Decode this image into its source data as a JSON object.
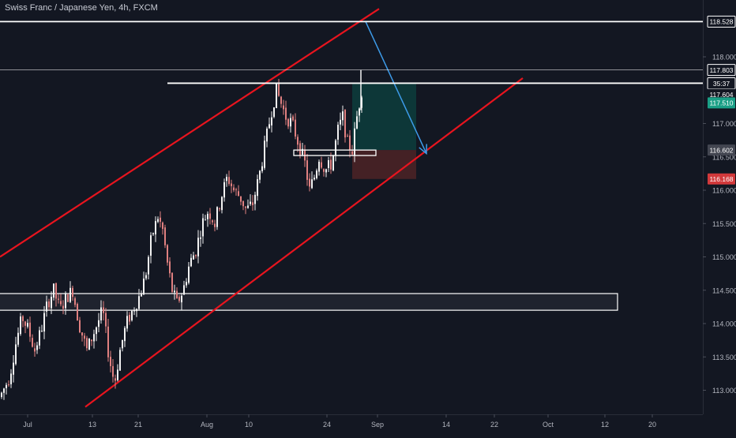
{
  "header": {
    "symbol_title": "Swiss Franc / Japanese Yen, 4h, FXCM"
  },
  "colors": {
    "background": "#131722",
    "axis_text": "#b2b5be",
    "up_candle": "#f2f2f2",
    "down_candle": "#e08080",
    "channel_line": "#e8141e",
    "projection_arrow": "#3d9be9",
    "target_zone": "#0d3b3b",
    "stop_zone": "#4a2226",
    "current_price_badge": "#1a9f86",
    "stop_price_badge": "#d2393b",
    "entry_price_badge": "#434651",
    "horizontal_level": "#ffffff"
  },
  "chart_data": {
    "type": "candlestick",
    "title": "Swiss Franc / Japanese Yen, 4h, FXCM",
    "x": {
      "tick_labels": [
        "Jul",
        "13",
        "21",
        "Aug",
        "10",
        "24",
        "Sep",
        "14",
        "22",
        "Oct",
        "12",
        "20"
      ]
    },
    "y": {
      "range": [
        112.75,
        118.72
      ],
      "tick_labels": [
        "118.000",
        "117.000",
        "116.500",
        "116.000",
        "115.500",
        "115.000",
        "114.500",
        "114.000",
        "113.500",
        "113.000"
      ]
    },
    "price_labels": {
      "upper_level": "118.528",
      "recent_high": "117.803",
      "countdown": "35:37",
      "resistance_level": "117.604",
      "current_price": "117.510",
      "entry": "116.602",
      "stop": "116.168"
    },
    "price_path": [
      [
        0,
        112.9
      ],
      [
        12,
        113.2
      ],
      [
        20,
        113.7
      ],
      [
        28,
        114.1
      ],
      [
        36,
        113.9
      ],
      [
        44,
        113.6
      ],
      [
        52,
        113.9
      ],
      [
        60,
        114.3
      ],
      [
        68,
        114.5
      ],
      [
        76,
        114.2
      ],
      [
        84,
        114.4
      ],
      [
        92,
        114.5
      ],
      [
        100,
        114.0
      ],
      [
        110,
        113.6
      ],
      [
        120,
        113.9
      ],
      [
        130,
        114.2
      ],
      [
        138,
        113.5
      ],
      [
        145,
        113.1
      ],
      [
        152,
        113.6
      ],
      [
        160,
        114.0
      ],
      [
        168,
        114.2
      ],
      [
        176,
        114.4
      ],
      [
        184,
        114.7
      ],
      [
        192,
        115.3
      ],
      [
        200,
        115.6
      ],
      [
        206,
        115.4
      ],
      [
        212,
        114.9
      ],
      [
        218,
        114.5
      ],
      [
        224,
        114.3
      ],
      [
        232,
        114.5
      ],
      [
        240,
        114.9
      ],
      [
        248,
        115.1
      ],
      [
        256,
        115.5
      ],
      [
        264,
        115.7
      ],
      [
        272,
        115.5
      ],
      [
        280,
        115.9
      ],
      [
        288,
        116.2
      ],
      [
        296,
        116.0
      ],
      [
        304,
        115.9
      ],
      [
        312,
        115.7
      ],
      [
        320,
        115.8
      ],
      [
        328,
        116.2
      ],
      [
        336,
        116.7
      ],
      [
        344,
        117.2
      ],
      [
        350,
        117.5
      ],
      [
        356,
        117.3
      ],
      [
        362,
        117.1
      ],
      [
        370,
        117.0
      ],
      [
        378,
        116.7
      ],
      [
        386,
        116.4
      ],
      [
        392,
        116.0
      ],
      [
        398,
        116.2
      ],
      [
        404,
        116.5
      ],
      [
        412,
        116.3
      ],
      [
        420,
        116.4
      ],
      [
        428,
        116.9
      ],
      [
        434,
        117.1
      ],
      [
        440,
        116.7
      ],
      [
        446,
        116.6
      ],
      [
        452,
        117.1
      ],
      [
        458,
        117.5
      ]
    ],
    "annotations": {
      "channel_upper": [
        [
          0,
          115.0
        ],
        [
          480,
          118.72
        ]
      ],
      "channel_lower": [
        [
          108,
          112.75
        ],
        [
          662,
          117.68
        ]
      ],
      "horizontal_levels": [
        {
          "from": 0,
          "to": 890,
          "price": 118.528
        },
        {
          "from": 0,
          "to": 890,
          "price": 117.803
        },
        {
          "from": 212,
          "to": 890,
          "price": 117.604
        }
      ],
      "support_zone": {
        "x0": 0,
        "x1": 782,
        "p_top": 114.45,
        "p_bottom": 114.2
      },
      "entry_box": {
        "x0": 372,
        "x1": 476,
        "p_top": 116.602,
        "p_bottom": 116.52
      },
      "long_target_zone": {
        "x0": 446,
        "x1": 527,
        "p_top": 117.604,
        "p_bottom": 116.602
      },
      "long_stop_zone": {
        "x0": 446,
        "x1": 527,
        "p_top": 116.602,
        "p_bottom": 116.168
      },
      "projection_arrow": {
        "from": [
          463,
          118.528
        ],
        "to": [
          540,
          116.55
        ]
      }
    }
  }
}
